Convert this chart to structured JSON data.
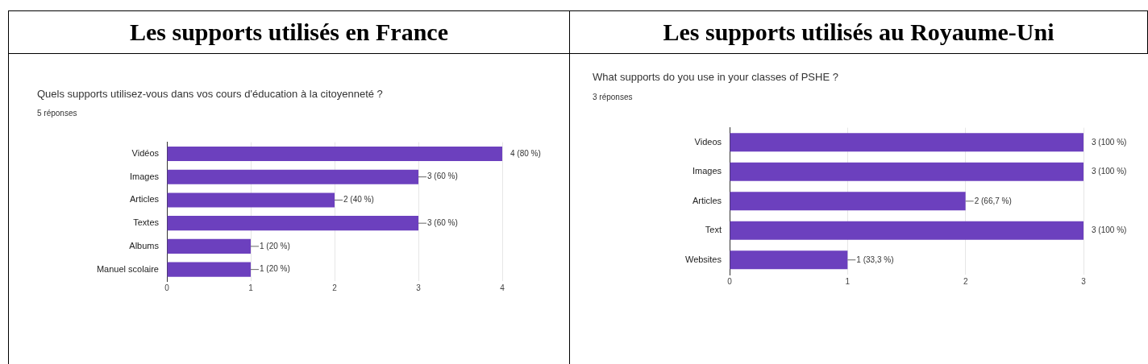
{
  "chart_data": [
    {
      "type": "bar",
      "orientation": "horizontal",
      "title": "Les supports utilisés en France",
      "subtitle": "Quels supports utilisez-vous dans vos cours d'éducation à la citoyenneté ?",
      "annotations": [
        "5 réponses"
      ],
      "categories": [
        "Vidéos",
        "Images",
        "Articles",
        "Textes",
        "Albums",
        "Manuel scolaire"
      ],
      "values": [
        4,
        3,
        2,
        3,
        1,
        1
      ],
      "value_labels": [
        "4 (80 %)",
        "3 (60 %)",
        "2 (40 %)",
        "3 (60 %)",
        "1 (20 %)",
        "1 (20 %)"
      ],
      "color": "#6c40be",
      "xlim": [
        0,
        4
      ],
      "xticks": [
        0,
        1,
        2,
        3,
        4
      ],
      "grid": "x"
    },
    {
      "type": "bar",
      "orientation": "horizontal",
      "title": "Les supports utilisés au Royaume-Uni",
      "subtitle": "What supports do you use in your classes of PSHE ?",
      "annotations": [
        "3 réponses"
      ],
      "categories": [
        "Videos",
        "Images",
        "Articles",
        "Text",
        "Websites"
      ],
      "values": [
        3,
        3,
        2,
        3,
        1
      ],
      "value_labels": [
        "3 (100 %)",
        "3 (100 %)",
        "2 (66,7 %)",
        "3 (100 %)",
        "1 (33,3 %)"
      ],
      "color": "#6c40be",
      "xlim": [
        0,
        3
      ],
      "xticks": [
        0,
        1,
        2,
        3
      ],
      "grid": "x"
    }
  ]
}
